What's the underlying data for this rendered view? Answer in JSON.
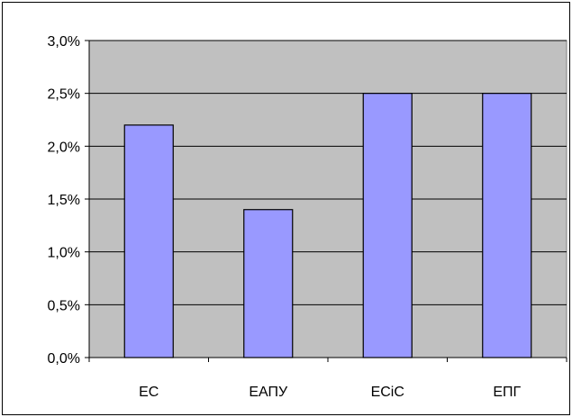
{
  "chart_data": {
    "type": "bar",
    "categories": [
      "ЕС",
      "ЕАПУ",
      "ЕСіС",
      "ЕПГ"
    ],
    "values": [
      2.2,
      1.4,
      2.5,
      2.5
    ],
    "ylim": [
      0,
      3.0
    ],
    "y_ticks": [
      0,
      0.5,
      1.0,
      1.5,
      2.0,
      2.5,
      3.0
    ],
    "y_tick_labels": [
      "0,0%",
      "0,5%",
      "1,0%",
      "1,5%",
      "2,0%",
      "2,5%",
      "3,0%"
    ],
    "title": "",
    "xlabel": "",
    "ylabel": "",
    "grid": true,
    "legend": false
  },
  "colors": {
    "plot_background": "#c0c0c0",
    "bar_fill": "#9999ff",
    "bar_stroke": "#000000",
    "grid": "#000000"
  }
}
